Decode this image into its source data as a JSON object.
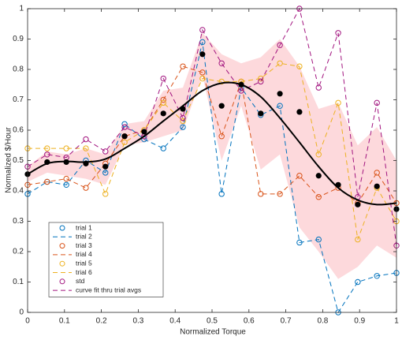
{
  "chart_data": {
    "type": "line",
    "x_label": "Normalized Torque",
    "y_label": "Normalized $/Hour",
    "x": [
      0,
      0.053,
      0.105,
      0.158,
      0.211,
      0.263,
      0.316,
      0.368,
      0.421,
      0.474,
      0.526,
      0.579,
      0.632,
      0.684,
      0.737,
      0.789,
      0.842,
      0.895,
      0.947,
      1
    ],
    "xlim": [
      0,
      1
    ],
    "ylim": [
      0,
      1
    ],
    "xticks": [
      0,
      0.1,
      0.2,
      0.3,
      0.4,
      0.5,
      0.6,
      0.7,
      0.8,
      0.9,
      1
    ],
    "yticks": [
      0,
      0.1,
      0.2,
      0.3,
      0.4,
      0.5,
      0.6,
      0.7,
      0.8,
      0.9,
      1
    ],
    "series": [
      {
        "color": "#0072bd",
        "values": [
          0.39,
          0.43,
          0.42,
          0.5,
          0.46,
          0.62,
          0.57,
          0.54,
          0.61,
          0.89,
          0.39,
          0.74,
          0.65,
          0.68,
          0.23,
          0.24,
          0.0,
          0.1,
          0.12,
          0.13
        ]
      },
      {
        "color": "#d95319",
        "values": [
          0.42,
          0.43,
          0.44,
          0.41,
          0.49,
          0.58,
          0.6,
          0.7,
          0.81,
          0.79,
          0.58,
          0.76,
          0.39,
          0.39,
          0.45,
          0.38,
          0.41,
          0.36,
          0.46,
          0.36
        ]
      },
      {
        "color": "#edb120",
        "values": [
          0.54,
          0.54,
          0.54,
          0.54,
          0.39,
          0.56,
          0.6,
          0.69,
          0.63,
          0.77,
          0.76,
          0.76,
          0.77,
          0.82,
          0.81,
          0.52,
          0.69,
          0.24,
          0.41,
          0.3
        ]
      },
      {
        "color": "#a2147f",
        "values": [
          0.48,
          0.52,
          0.51,
          0.57,
          0.53,
          0.61,
          0.58,
          0.77,
          0.64,
          0.93,
          0.82,
          0.73,
          0.76,
          0.88,
          1.0,
          0.74,
          0.92,
          0.38,
          0.69,
          0.22
        ]
      }
    ],
    "averages": {
      "color": "#000000",
      "values": [
        0.455,
        0.495,
        0.495,
        0.49,
        0.48,
        0.58,
        0.595,
        0.655,
        0.67,
        0.85,
        0.68,
        0.75,
        0.655,
        0.72,
        0.66,
        0.45,
        0.42,
        0.355,
        0.415,
        0.34
      ]
    },
    "curve_fit": {
      "color": "#000000",
      "values": [
        0.455,
        0.49,
        0.497,
        0.495,
        0.505,
        0.54,
        0.58,
        0.63,
        0.68,
        0.73,
        0.755,
        0.75,
        0.71,
        0.64,
        0.56,
        0.48,
        0.41,
        0.37,
        0.355,
        0.36
      ]
    },
    "band": {
      "color": "#fdd9dc",
      "upper": [
        0.48,
        0.53,
        0.52,
        0.54,
        0.52,
        0.62,
        0.63,
        0.73,
        0.74,
        0.92,
        0.85,
        0.82,
        0.84,
        0.9,
        0.81,
        0.67,
        0.69,
        0.55,
        0.61,
        0.5
      ],
      "lower": [
        0.43,
        0.46,
        0.45,
        0.44,
        0.42,
        0.55,
        0.56,
        0.58,
        0.6,
        0.78,
        0.5,
        0.68,
        0.47,
        0.52,
        0.28,
        0.2,
        0.11,
        0.15,
        0.22,
        0.18
      ]
    },
    "legend": {
      "position": "lower left",
      "entries": [
        {
          "label": "trial 1",
          "color": "#0072bd",
          "style": "marker"
        },
        {
          "label": "trial 2",
          "color": "#0072bd",
          "style": "dashed"
        },
        {
          "label": "trial 3",
          "color": "#d95319",
          "style": "marker"
        },
        {
          "label": "trial 4",
          "color": "#d95319",
          "style": "dashed"
        },
        {
          "label": "trial 5",
          "color": "#edb120",
          "style": "marker"
        },
        {
          "label": "trial 6",
          "color": "#edb120",
          "style": "dashed"
        },
        {
          "label": "std",
          "color": "#a2147f",
          "style": "marker"
        },
        {
          "label": "curve fit thru trial avgs",
          "color": "#a2147f",
          "style": "dashed"
        }
      ]
    }
  }
}
